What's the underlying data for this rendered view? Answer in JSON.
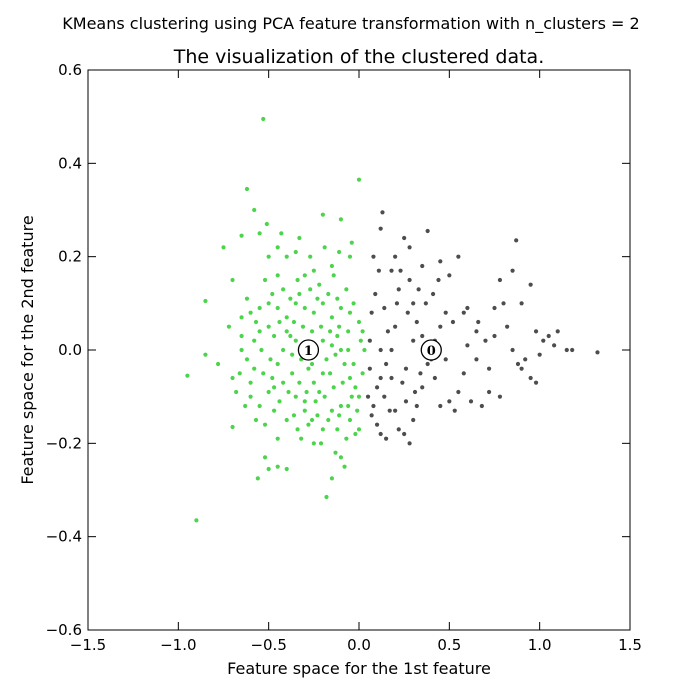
{
  "figure": {
    "suptitle": "KMeans clustering using PCA feature transformation with n_clusters = 2"
  },
  "chart_data": {
    "type": "scatter",
    "title": "The visualization of the clustered data.",
    "xlabel": "Feature space for the 1st feature",
    "ylabel": "Feature space for the 2nd feature",
    "xlim": [
      -1.5,
      1.5
    ],
    "ylim": [
      -0.6,
      0.6
    ],
    "xticks": [
      -1.5,
      -1.0,
      -0.5,
      0.0,
      0.5,
      1.0,
      1.5
    ],
    "xtick_labels": [
      "−1.5",
      "−1.0",
      "−0.5",
      "0.0",
      "0.5",
      "1.0",
      "1.5"
    ],
    "yticks": [
      -0.6,
      -0.4,
      -0.2,
      0.0,
      0.2,
      0.4,
      0.6
    ],
    "ytick_labels": [
      "−0.6",
      "−0.4",
      "−0.2",
      "0.0",
      "0.2",
      "0.4",
      "0.6"
    ],
    "grid": false,
    "colors": {
      "cluster_0": "#2e2e2e",
      "cluster_1": "#2ecc2e"
    },
    "series": [
      {
        "color": "#2e2e2e",
        "points": [
          [
            0.08,
            0.2
          ],
          [
            0.12,
            0.26
          ],
          [
            0.13,
            0.295
          ],
          [
            0.18,
            0.17
          ],
          [
            0.25,
            0.24
          ],
          [
            0.28,
            0.22
          ],
          [
            0.38,
            0.255
          ],
          [
            0.45,
            0.19
          ],
          [
            0.55,
            0.2
          ],
          [
            0.5,
            0.16
          ],
          [
            0.6,
            0.09
          ],
          [
            0.52,
            0.06
          ],
          [
            0.58,
            0.08
          ],
          [
            0.65,
            0.04
          ],
          [
            0.7,
            0.02
          ],
          [
            0.75,
            0.03
          ],
          [
            0.8,
            0.1
          ],
          [
            0.85,
            0.17
          ],
          [
            0.87,
            0.235
          ],
          [
            0.9,
            0.1
          ],
          [
            0.95,
            0.14
          ],
          [
            0.98,
            0.04
          ],
          [
            1.02,
            0.02
          ],
          [
            1.05,
            0.03
          ],
          [
            1.08,
            0.01
          ],
          [
            1.1,
            0.04
          ],
          [
            1.15,
            0.0
          ],
          [
            1.18,
            0.0
          ],
          [
            1.32,
            -0.005
          ],
          [
            0.85,
            0.0
          ],
          [
            0.88,
            -0.03
          ],
          [
            0.92,
            -0.02
          ],
          [
            0.95,
            -0.06
          ],
          [
            1.0,
            -0.01
          ],
          [
            0.72,
            -0.04
          ],
          [
            0.65,
            -0.02
          ],
          [
            0.58,
            -0.05
          ],
          [
            0.55,
            -0.09
          ],
          [
            0.53,
            -0.13
          ],
          [
            0.5,
            -0.11
          ],
          [
            0.45,
            -0.12
          ],
          [
            0.62,
            -0.11
          ],
          [
            0.68,
            -0.12
          ],
          [
            0.72,
            -0.09
          ],
          [
            0.42,
            -0.06
          ],
          [
            0.4,
            -0.02
          ],
          [
            0.35,
            0.03
          ],
          [
            0.32,
            0.06
          ],
          [
            0.3,
            0.1
          ],
          [
            0.28,
            0.15
          ],
          [
            0.22,
            0.13
          ],
          [
            0.2,
            0.05
          ],
          [
            0.18,
            0.0
          ],
          [
            0.15,
            -0.03
          ],
          [
            0.12,
            -0.06
          ],
          [
            0.1,
            -0.08
          ],
          [
            0.08,
            -0.12
          ],
          [
            0.1,
            -0.16
          ],
          [
            0.12,
            -0.18
          ],
          [
            0.15,
            -0.19
          ],
          [
            0.2,
            -0.13
          ],
          [
            0.22,
            -0.17
          ],
          [
            0.25,
            -0.18
          ],
          [
            0.28,
            -0.2
          ],
          [
            0.3,
            -0.15
          ],
          [
            0.32,
            -0.12
          ],
          [
            0.35,
            -0.08
          ],
          [
            0.38,
            -0.03
          ],
          [
            0.42,
            0.02
          ],
          [
            0.45,
            0.05
          ],
          [
            0.48,
            0.08
          ],
          [
            0.06,
            0.02
          ],
          [
            0.06,
            -0.04
          ],
          [
            0.07,
            0.08
          ],
          [
            0.09,
            0.12
          ],
          [
            0.14,
            0.09
          ],
          [
            0.16,
            0.04
          ],
          [
            0.18,
            -0.06
          ],
          [
            0.24,
            -0.07
          ],
          [
            0.26,
            -0.04
          ],
          [
            0.3,
            0.02
          ],
          [
            0.34,
            -0.05
          ],
          [
            0.27,
            0.08
          ],
          [
            0.21,
            0.1
          ],
          [
            0.23,
            0.17
          ],
          [
            0.11,
            0.17
          ],
          [
            0.33,
            0.13
          ],
          [
            0.37,
            0.1
          ],
          [
            0.41,
            0.12
          ],
          [
            0.44,
            0.15
          ],
          [
            0.6,
            0.01
          ],
          [
            0.66,
            0.06
          ],
          [
            0.75,
            0.09
          ],
          [
            0.78,
            0.15
          ],
          [
            0.82,
            0.05
          ],
          [
            0.9,
            -0.04
          ],
          [
            0.98,
            -0.07
          ],
          [
            0.78,
            -0.1
          ],
          [
            0.48,
            -0.02
          ],
          [
            0.05,
            -0.1
          ],
          [
            0.07,
            -0.14
          ],
          [
            0.14,
            -0.1
          ],
          [
            0.17,
            -0.13
          ],
          [
            0.26,
            -0.11
          ],
          [
            0.31,
            -0.09
          ],
          [
            0.36,
            0.0
          ],
          [
            0.12,
            0.0
          ],
          [
            0.2,
            0.2
          ],
          [
            0.35,
            0.18
          ]
        ]
      },
      {
        "color": "#2ecc2e",
        "points": [
          [
            -0.53,
            0.495
          ],
          [
            -0.62,
            0.345
          ],
          [
            -0.58,
            0.3
          ],
          [
            -0.51,
            0.27
          ],
          [
            -0.55,
            0.25
          ],
          [
            -0.65,
            0.245
          ],
          [
            -0.75,
            0.22
          ],
          [
            -0.45,
            0.22
          ],
          [
            -0.4,
            0.2
          ],
          [
            -0.35,
            0.21
          ],
          [
            -0.2,
            0.29
          ],
          [
            -0.1,
            0.28
          ],
          [
            0.0,
            0.365
          ],
          [
            -0.05,
            0.2
          ],
          [
            -0.15,
            0.18
          ],
          [
            -0.25,
            0.17
          ],
          [
            -0.3,
            0.16
          ],
          [
            -0.45,
            0.16
          ],
          [
            -0.52,
            0.15
          ],
          [
            -0.7,
            0.15
          ],
          [
            -0.85,
            0.105
          ],
          [
            -0.6,
            0.08
          ],
          [
            -0.65,
            0.07
          ],
          [
            -0.5,
            0.1
          ],
          [
            -0.45,
            0.09
          ],
          [
            -0.4,
            0.07
          ],
          [
            -0.35,
            0.1
          ],
          [
            -0.3,
            0.09
          ],
          [
            -0.25,
            0.08
          ],
          [
            -0.2,
            0.1
          ],
          [
            -0.15,
            0.07
          ],
          [
            -0.1,
            0.09
          ],
          [
            -0.05,
            0.08
          ],
          [
            0.0,
            0.06
          ],
          [
            0.02,
            0.04
          ],
          [
            -0.55,
            0.04
          ],
          [
            -0.58,
            0.02
          ],
          [
            -0.65,
            0.0
          ],
          [
            -0.62,
            -0.02
          ],
          [
            -0.85,
            -0.01
          ],
          [
            -0.95,
            -0.055
          ],
          [
            -0.7,
            -0.06
          ],
          [
            -0.68,
            -0.09
          ],
          [
            -0.6,
            -0.1
          ],
          [
            -0.55,
            -0.12
          ],
          [
            -0.5,
            -0.09
          ],
          [
            -0.48,
            -0.06
          ],
          [
            -0.45,
            -0.03
          ],
          [
            -0.42,
            0.0
          ],
          [
            -0.38,
            0.03
          ],
          [
            -0.35,
            0.02
          ],
          [
            -0.32,
            -0.02
          ],
          [
            -0.28,
            -0.04
          ],
          [
            -0.25,
            -0.07
          ],
          [
            -0.22,
            -0.09
          ],
          [
            -0.2,
            -0.05
          ],
          [
            -0.18,
            -0.02
          ],
          [
            -0.15,
            0.01
          ],
          [
            -0.12,
            0.03
          ],
          [
            -0.1,
            0.0
          ],
          [
            -0.08,
            -0.03
          ],
          [
            -0.05,
            -0.06
          ],
          [
            -0.02,
            -0.08
          ],
          [
            0.0,
            -0.1
          ],
          [
            0.02,
            -0.05
          ],
          [
            0.03,
            0.0
          ],
          [
            -0.35,
            -0.1
          ],
          [
            -0.3,
            -0.13
          ],
          [
            -0.28,
            -0.16
          ],
          [
            -0.32,
            -0.19
          ],
          [
            -0.25,
            -0.2
          ],
          [
            -0.2,
            -0.17
          ],
          [
            -0.15,
            -0.13
          ],
          [
            -0.1,
            -0.12
          ],
          [
            -0.05,
            -0.15
          ],
          [
            -0.02,
            -0.18
          ],
          [
            0.0,
            -0.17
          ],
          [
            -0.4,
            -0.15
          ],
          [
            -0.45,
            -0.19
          ],
          [
            -0.52,
            -0.23
          ],
          [
            -0.5,
            -0.255
          ],
          [
            -0.45,
            -0.25
          ],
          [
            -0.4,
            -0.255
          ],
          [
            -0.56,
            -0.275
          ],
          [
            -0.7,
            -0.165
          ],
          [
            -0.9,
            -0.365
          ],
          [
            -0.15,
            -0.275
          ],
          [
            -0.08,
            -0.25
          ],
          [
            -0.13,
            -0.22
          ],
          [
            -0.18,
            -0.315
          ],
          [
            -0.1,
            -0.23
          ],
          [
            -0.42,
            0.13
          ],
          [
            -0.48,
            0.12
          ],
          [
            -0.38,
            0.11
          ],
          [
            -0.33,
            0.12
          ],
          [
            -0.27,
            0.13
          ],
          [
            -0.22,
            0.14
          ],
          [
            -0.17,
            0.12
          ],
          [
            -0.12,
            0.11
          ],
          [
            -0.07,
            0.13
          ],
          [
            -0.03,
            0.1
          ],
          [
            -0.57,
            0.06
          ],
          [
            -0.5,
            0.05
          ],
          [
            -0.47,
            0.03
          ],
          [
            -0.4,
            0.04
          ],
          [
            -0.36,
            0.06
          ],
          [
            -0.31,
            0.05
          ],
          [
            -0.26,
            0.04
          ],
          [
            -0.21,
            0.05
          ],
          [
            -0.16,
            0.04
          ],
          [
            -0.11,
            0.05
          ],
          [
            -0.06,
            0.04
          ],
          [
            -0.58,
            -0.04
          ],
          [
            -0.53,
            -0.05
          ],
          [
            -0.47,
            -0.08
          ],
          [
            -0.42,
            -0.07
          ],
          [
            -0.37,
            -0.05
          ],
          [
            -0.33,
            -0.07
          ],
          [
            -0.29,
            -0.09
          ],
          [
            -0.24,
            -0.11
          ],
          [
            -0.19,
            -0.1
          ],
          [
            -0.14,
            -0.08
          ],
          [
            -0.09,
            -0.07
          ],
          [
            -0.04,
            -0.1
          ],
          [
            -0.01,
            -0.13
          ],
          [
            -0.6,
            -0.07
          ],
          [
            -0.63,
            -0.12
          ],
          [
            -0.57,
            -0.15
          ],
          [
            -0.52,
            -0.16
          ],
          [
            -0.47,
            -0.13
          ],
          [
            -0.36,
            -0.14
          ],
          [
            -0.3,
            -0.11
          ],
          [
            -0.23,
            -0.14
          ],
          [
            -0.17,
            -0.15
          ],
          [
            -0.12,
            -0.17
          ],
          [
            -0.07,
            -0.19
          ],
          [
            -0.5,
            0.2
          ],
          [
            -0.43,
            0.25
          ],
          [
            -0.33,
            0.24
          ],
          [
            -0.27,
            0.2
          ],
          [
            -0.19,
            0.22
          ],
          [
            -0.11,
            0.21
          ],
          [
            -0.04,
            0.23
          ],
          [
            -0.14,
            0.16
          ],
          [
            -0.23,
            0.11
          ],
          [
            -0.34,
            0.15
          ],
          [
            -0.44,
            0.06
          ],
          [
            -0.54,
            0.0
          ],
          [
            -0.49,
            -0.02
          ],
          [
            -0.37,
            -0.01
          ],
          [
            -0.27,
            0.0
          ],
          [
            -0.2,
            0.02
          ],
          [
            -0.13,
            -0.01
          ],
          [
            -0.06,
            0.0
          ],
          [
            0.01,
            0.02
          ],
          [
            -0.03,
            -0.03
          ],
          [
            -0.16,
            -0.05
          ],
          [
            -0.26,
            -0.03
          ],
          [
            -0.39,
            -0.09
          ],
          [
            -0.44,
            -0.11
          ],
          [
            -0.34,
            -0.17
          ],
          [
            -0.26,
            -0.15
          ],
          [
            -0.21,
            -0.2
          ],
          [
            -0.11,
            -0.14
          ],
          [
            -0.06,
            -0.12
          ],
          [
            -0.65,
            0.03
          ],
          [
            -0.72,
            0.05
          ],
          [
            -0.78,
            -0.03
          ],
          [
            -0.66,
            -0.05
          ],
          [
            -0.55,
            0.09
          ],
          [
            -0.62,
            0.11
          ]
        ]
      }
    ],
    "centers": [
      {
        "label": "0",
        "x": 0.4,
        "y": 0.0
      },
      {
        "label": "1",
        "x": -0.28,
        "y": 0.0
      }
    ]
  }
}
